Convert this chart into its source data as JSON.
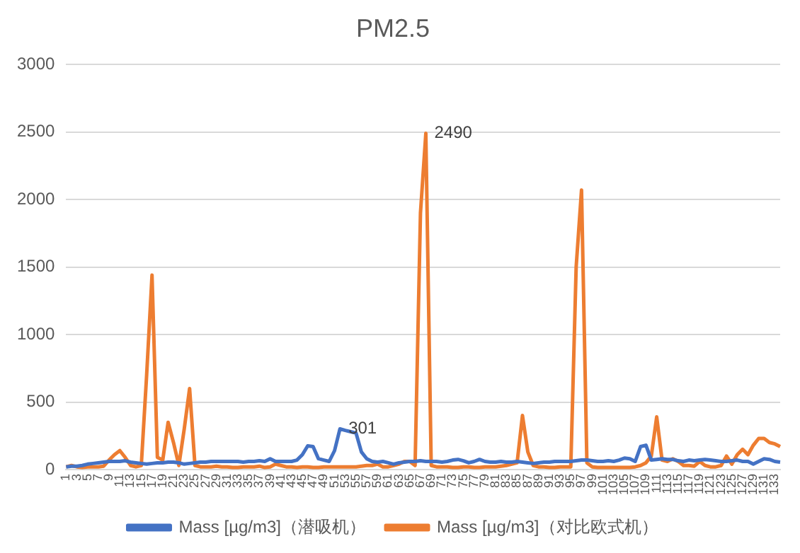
{
  "chart_data": {
    "type": "line",
    "title": "PM2.5",
    "categories": [
      "1",
      null,
      "3",
      null,
      "5",
      null,
      "7",
      null,
      "9",
      null,
      "11",
      null,
      "13",
      null,
      "15",
      null,
      "17",
      null,
      "19",
      null,
      "21",
      null,
      "23",
      null,
      "25",
      null,
      "27",
      null,
      "29",
      null,
      "31",
      null,
      "33",
      null,
      "35",
      null,
      "37",
      null,
      "39",
      null,
      "41",
      null,
      "43",
      null,
      "45",
      null,
      "47",
      null,
      "49",
      null,
      "51",
      null,
      "53",
      null,
      "55",
      null,
      "57",
      null,
      "59",
      null,
      "61",
      null,
      "63",
      null,
      "65",
      null,
      "67",
      null,
      "69",
      null,
      "71",
      null,
      "73",
      null,
      "75",
      null,
      "77",
      null,
      "79",
      null,
      "81",
      null,
      "83",
      null,
      "85",
      null,
      "87",
      null,
      "89",
      null,
      "91",
      null,
      "93",
      null,
      "95",
      null,
      "97",
      null,
      "99",
      null,
      "101",
      null,
      "103",
      null,
      "105",
      null,
      "107",
      null,
      "109",
      null,
      "111",
      null,
      "113",
      null,
      "115",
      null,
      "117",
      null,
      "119",
      null,
      "121",
      null,
      "123",
      null,
      "125",
      null,
      "127",
      null,
      "129",
      null,
      "131",
      null,
      "133",
      null
    ],
    "series": [
      {
        "name": "Mass [µg/m3]（潜吸机）",
        "color": "#4472c4",
        "values": [
          20,
          25,
          25,
          30,
          40,
          45,
          50,
          55,
          60,
          60,
          60,
          65,
          55,
          50,
          45,
          40,
          45,
          50,
          50,
          55,
          55,
          50,
          40,
          45,
          50,
          55,
          55,
          60,
          60,
          60,
          60,
          60,
          60,
          55,
          60,
          60,
          65,
          60,
          80,
          60,
          60,
          60,
          60,
          70,
          110,
          175,
          170,
          80,
          70,
          60,
          140,
          301,
          290,
          280,
          270,
          130,
          80,
          60,
          55,
          60,
          50,
          40,
          50,
          55,
          60,
          60,
          65,
          60,
          60,
          60,
          55,
          60,
          70,
          75,
          65,
          50,
          60,
          75,
          60,
          55,
          55,
          60,
          55,
          55,
          60,
          55,
          50,
          45,
          50,
          55,
          55,
          60,
          60,
          60,
          60,
          65,
          70,
          70,
          65,
          60,
          60,
          65,
          60,
          70,
          85,
          80,
          60,
          170,
          180,
          70,
          75,
          80,
          75,
          75,
          65,
          60,
          70,
          65,
          70,
          75,
          70,
          65,
          60,
          60,
          65,
          70,
          60,
          60,
          40,
          60,
          80,
          75,
          60,
          55
        ],
        "value_labels": [
          null,
          null,
          null,
          null,
          null,
          null,
          null,
          null,
          null,
          null,
          null,
          null,
          null,
          null,
          null,
          null,
          null,
          null,
          null,
          null,
          null,
          null,
          null,
          null,
          null,
          null,
          null,
          null,
          null,
          null,
          null,
          null,
          null,
          null,
          null,
          null,
          null,
          null,
          null,
          null,
          null,
          null,
          null,
          null,
          null,
          null,
          null,
          null,
          null,
          null,
          null,
          "301",
          null,
          null,
          null,
          null,
          null,
          null,
          null,
          null,
          null,
          null,
          null,
          null,
          null,
          null,
          null,
          null,
          null,
          null,
          null,
          null,
          null,
          null,
          null,
          null,
          null,
          null,
          null,
          null,
          null,
          null,
          null,
          null,
          null,
          null,
          null,
          null,
          null,
          null,
          null,
          null,
          null,
          null,
          null,
          null,
          null,
          null,
          null,
          null,
          null,
          null,
          null,
          null,
          null,
          null,
          null,
          null,
          null,
          null,
          null,
          null,
          null,
          null,
          null,
          null,
          null,
          null,
          null,
          null,
          null,
          null,
          null,
          null,
          null,
          null,
          null,
          null,
          null,
          null,
          null,
          null,
          null,
          null
        ]
      },
      {
        "name": "Mass [µg/m3]（对比欧式机）",
        "color": "#ed7d31",
        "values": [
          20,
          30,
          20,
          15,
          20,
          20,
          20,
          25,
          70,
          110,
          140,
          90,
          30,
          20,
          30,
          700,
          1440,
          90,
          70,
          350,
          200,
          30,
          300,
          600,
          30,
          20,
          20,
          20,
          25,
          20,
          20,
          15,
          15,
          20,
          20,
          20,
          25,
          15,
          20,
          40,
          30,
          20,
          20,
          15,
          20,
          20,
          15,
          15,
          20,
          20,
          20,
          20,
          20,
          20,
          20,
          25,
          30,
          30,
          40,
          20,
          20,
          30,
          40,
          60,
          60,
          30,
          1900,
          2490,
          30,
          20,
          20,
          20,
          15,
          15,
          20,
          20,
          15,
          15,
          20,
          20,
          20,
          25,
          30,
          40,
          50,
          400,
          130,
          30,
          20,
          20,
          15,
          15,
          20,
          20,
          20,
          1500,
          2070,
          50,
          20,
          15,
          15,
          15,
          15,
          15,
          15,
          15,
          20,
          30,
          50,
          100,
          390,
          70,
          60,
          80,
          60,
          30,
          30,
          25,
          60,
          30,
          20,
          20,
          30,
          100,
          40,
          110,
          150,
          110,
          180,
          230,
          230,
          200,
          190,
          170
        ],
        "value_labels": [
          null,
          null,
          null,
          null,
          null,
          null,
          null,
          null,
          null,
          null,
          null,
          null,
          null,
          null,
          null,
          null,
          null,
          null,
          null,
          null,
          null,
          null,
          null,
          null,
          null,
          null,
          null,
          null,
          null,
          null,
          null,
          null,
          null,
          null,
          null,
          null,
          null,
          null,
          null,
          null,
          null,
          null,
          null,
          null,
          null,
          null,
          null,
          null,
          null,
          null,
          null,
          null,
          null,
          null,
          null,
          null,
          null,
          null,
          null,
          null,
          null,
          null,
          null,
          null,
          null,
          null,
          null,
          "2490",
          null,
          null,
          null,
          null,
          null,
          null,
          null,
          null,
          null,
          null,
          null,
          null,
          null,
          null,
          null,
          null,
          null,
          null,
          null,
          null,
          null,
          null,
          null,
          null,
          null,
          null,
          null,
          null,
          null,
          null,
          null,
          null,
          null,
          null,
          null,
          null,
          null,
          null,
          null,
          null,
          null,
          null,
          null,
          null,
          null,
          null,
          null,
          null,
          null,
          null,
          null,
          null,
          null,
          null,
          null,
          null,
          null,
          null,
          null,
          null,
          null,
          null,
          null,
          null,
          null,
          null
        ]
      }
    ],
    "ylim": [
      0,
      3000
    ],
    "yticks": [
      0,
      500,
      1000,
      1500,
      2000,
      2500,
      3000
    ],
    "grid": "y",
    "legend": "bottom",
    "marker": "none",
    "line_style": "solid"
  }
}
